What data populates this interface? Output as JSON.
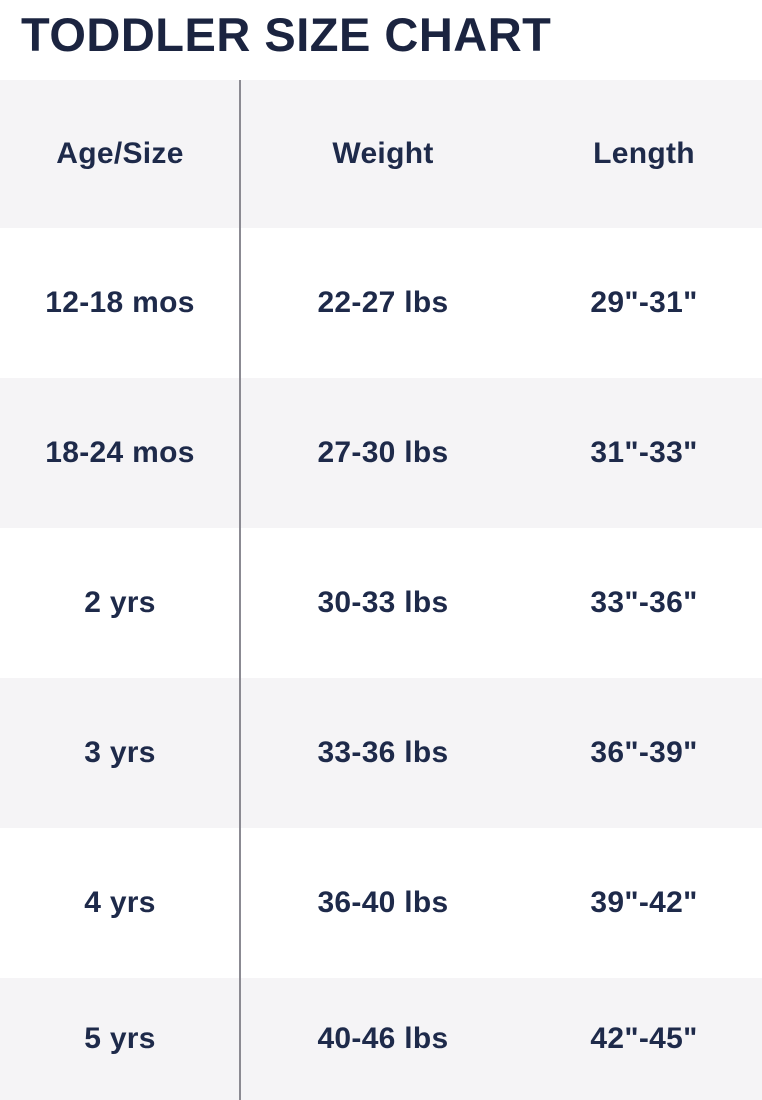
{
  "title": "TODDLER SIZE CHART",
  "colors": {
    "ink_navy": "#1e2a4a",
    "title_navy": "#1b2440",
    "row_gray": "#f5f4f6",
    "row_white": "#ffffff",
    "divider_gray": "#8b8a92"
  },
  "chart_data": {
    "type": "table",
    "title": "TODDLER SIZE CHART",
    "columns": [
      "Age/Size",
      "Weight",
      "Length"
    ],
    "rows": [
      [
        "12-18 mos",
        "22-27 lbs",
        "29\"-31\""
      ],
      [
        "18-24 mos",
        "27-30 lbs",
        "31\"-33\""
      ],
      [
        "2 yrs",
        "30-33 lbs",
        "33\"-36\""
      ],
      [
        "3 yrs",
        "33-36 lbs",
        "36\"-39\""
      ],
      [
        "4 yrs",
        "36-40 lbs",
        "39\"-42\""
      ],
      [
        "5 yrs",
        "40-46 lbs",
        "42\"-45\""
      ]
    ],
    "layout": {
      "striped": true,
      "header_background": "#f5f4f6",
      "stripe_background": "#f5f4f6",
      "column_divider_after": "Age/Size"
    }
  }
}
